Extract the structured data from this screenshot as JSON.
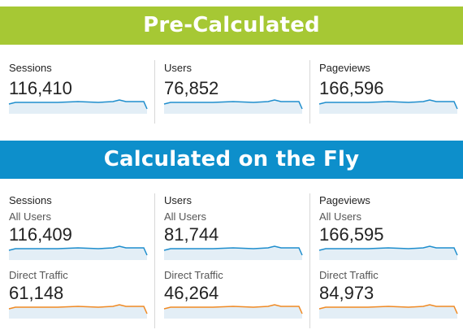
{
  "sections": [
    {
      "title": "Pre-Calculated",
      "color": "#a6c834"
    },
    {
      "title": "Calculated on the Fly",
      "color": "#0d8fcb"
    }
  ],
  "pre": [
    {
      "label": "Sessions",
      "value": "116,410"
    },
    {
      "label": "Users",
      "value": "76,852"
    },
    {
      "label": "Pageviews",
      "value": "166,596"
    }
  ],
  "fly": [
    {
      "label": "Sessions",
      "all": {
        "segment": "All Users",
        "value": "116,409"
      },
      "direct": {
        "segment": "Direct Traffic",
        "value": "61,148"
      }
    },
    {
      "label": "Users",
      "all": {
        "segment": "All Users",
        "value": "81,744"
      },
      "direct": {
        "segment": "Direct Traffic",
        "value": "46,264"
      }
    },
    {
      "label": "Pageviews",
      "all": {
        "segment": "All Users",
        "value": "166,595"
      },
      "direct": {
        "segment": "Direct Traffic",
        "value": "84,973"
      }
    }
  ],
  "sparkline_colors": {
    "all": "#1f8ecd",
    "direct": "#f08a24",
    "fill": "#e3eef6"
  }
}
